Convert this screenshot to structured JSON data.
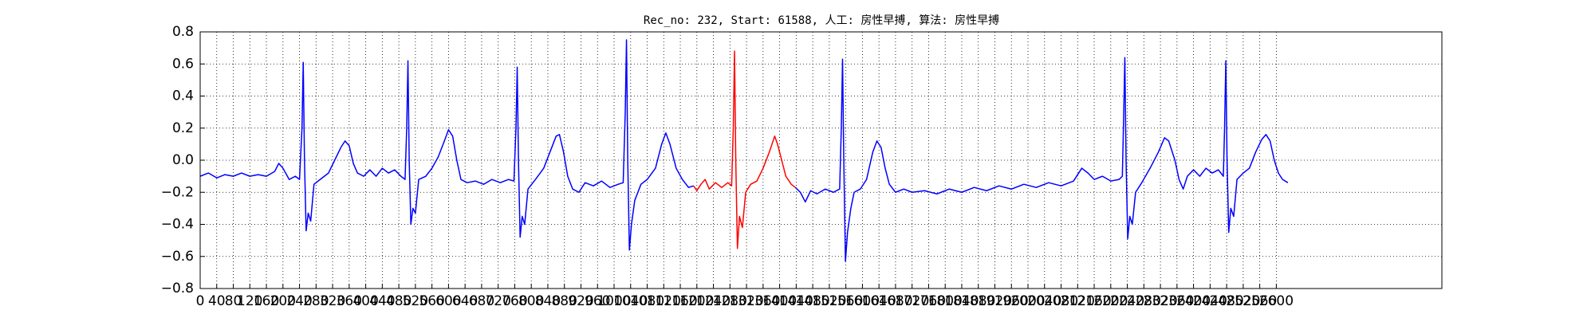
{
  "chart_data": {
    "type": "line",
    "title": "Rec_no: 232, Start: 61588, 人工: 房性早搏, 算法: 房性早搏",
    "xlim": [
      0,
      3000
    ],
    "xticks": [
      0,
      40,
      80,
      120,
      160,
      200,
      240,
      280,
      320,
      360,
      400,
      440,
      480,
      520,
      560,
      600,
      640,
      680,
      720,
      760,
      800,
      840,
      880,
      920,
      960,
      1000,
      1040,
      1080,
      1120,
      1160,
      1200,
      1240,
      1280,
      1320,
      1360,
      1400,
      1440,
      1480,
      1520,
      1560,
      1600,
      1640,
      1680,
      1720,
      1760,
      1800,
      1840,
      1880,
      1920,
      1960,
      2000,
      2040,
      2080,
      2120,
      2160,
      2200,
      2240,
      2280,
      2320,
      2360,
      2400,
      2440,
      2480,
      2520,
      2560,
      2600
    ],
    "ylim": [
      -0.8,
      0.8
    ],
    "yticks": [
      {
        "value": -0.8,
        "label": "−0.8"
      },
      {
        "value": -0.6,
        "label": "−0.6"
      },
      {
        "value": -0.4,
        "label": "−0.4"
      },
      {
        "value": -0.2,
        "label": "−0.2"
      },
      {
        "value": 0.0,
        "label": "0.0"
      },
      0.2,
      0.4,
      0.6,
      0.8
    ],
    "grid": true,
    "series": [
      {
        "color": "#0000ff",
        "x": [
          0,
          20,
          40,
          60,
          80,
          100,
          120,
          140,
          160,
          180,
          190,
          200,
          215,
          230,
          240,
          246,
          249,
          252,
          256,
          261,
          267,
          275,
          290,
          310,
          325,
          340,
          350,
          360,
          370,
          380,
          395,
          410,
          425,
          440,
          455,
          470,
          485,
          495,
          499,
          502,
          505,
          509,
          514,
          520,
          528,
          545,
          560,
          575,
          590,
          600,
          610,
          620,
          630,
          645,
          665,
          685,
          705,
          725,
          745,
          758,
          763,
          766,
          769,
          773,
          778,
          784,
          792,
          810,
          830,
          845,
          860,
          868,
          878,
          888,
          900,
          915,
          930,
          950,
          970,
          990,
          1010,
          1022,
          1027,
          1030,
          1033,
          1037,
          1042,
          1050,
          1065,
          1080,
          1100,
          1115,
          1125,
          1135,
          1150,
          1165,
          1180,
          1192,
          null,
          1438,
          1450,
          1462,
          1475,
          1490,
          1510,
          1530,
          1545,
          1549,
          1552,
          1555,
          1559,
          1564,
          1572,
          1580,
          1595,
          1610,
          1625,
          1635,
          1645,
          1655,
          1665,
          1680,
          1700,
          1720,
          1750,
          1780,
          1810,
          1840,
          1870,
          1900,
          1930,
          1960,
          1990,
          2020,
          2050,
          2080,
          2110,
          2130,
          2145,
          2160,
          2180,
          2200,
          2220,
          2228,
          2231,
          2234,
          2237,
          2241,
          2246,
          2252,
          2260,
          2275,
          2295,
          2315,
          2330,
          2340,
          2355,
          2365,
          2375,
          2385,
          2400,
          2415,
          2430,
          2445,
          2460,
          2472,
          2475,
          2478,
          2481,
          2485,
          2490,
          2497,
          2505,
          2520,
          2535,
          2550,
          2565,
          2575,
          2585,
          2595,
          2605,
          2615,
          2628
        ],
        "values": [
          -0.1,
          -0.08,
          -0.11,
          -0.09,
          -0.1,
          -0.08,
          -0.1,
          -0.09,
          -0.1,
          -0.07,
          -0.02,
          -0.05,
          -0.12,
          -0.1,
          -0.12,
          0.2,
          0.61,
          0.0,
          -0.44,
          -0.33,
          -0.38,
          -0.15,
          -0.12,
          -0.08,
          0.0,
          0.08,
          0.12,
          0.09,
          -0.02,
          -0.08,
          -0.1,
          -0.06,
          -0.1,
          -0.05,
          -0.08,
          -0.06,
          -0.1,
          -0.12,
          0.2,
          0.62,
          0.0,
          -0.4,
          -0.3,
          -0.33,
          -0.12,
          -0.1,
          -0.05,
          0.02,
          0.12,
          0.19,
          0.15,
          0.0,
          -0.12,
          -0.14,
          -0.13,
          -0.15,
          -0.12,
          -0.14,
          -0.12,
          -0.13,
          0.2,
          0.58,
          0.0,
          -0.48,
          -0.35,
          -0.4,
          -0.18,
          -0.12,
          -0.05,
          0.05,
          0.15,
          0.16,
          0.05,
          -0.1,
          -0.18,
          -0.2,
          -0.14,
          -0.16,
          -0.13,
          -0.17,
          -0.15,
          -0.14,
          0.3,
          0.75,
          0.0,
          -0.56,
          -0.4,
          -0.25,
          -0.15,
          -0.12,
          -0.05,
          0.1,
          0.17,
          0.1,
          -0.05,
          -0.12,
          -0.17,
          -0.16,
          null,
          -0.17,
          -0.2,
          -0.26,
          -0.19,
          -0.21,
          -0.18,
          -0.2,
          -0.18,
          0.2,
          0.63,
          0.0,
          -0.63,
          -0.45,
          -0.3,
          -0.2,
          -0.18,
          -0.12,
          0.05,
          0.12,
          0.08,
          -0.05,
          -0.15,
          -0.2,
          -0.18,
          -0.2,
          -0.19,
          -0.21,
          -0.18,
          -0.2,
          -0.17,
          -0.19,
          -0.16,
          -0.18,
          -0.15,
          -0.17,
          -0.14,
          -0.16,
          -0.13,
          -0.05,
          -0.08,
          -0.12,
          -0.1,
          -0.13,
          -0.12,
          -0.1,
          0.25,
          0.64,
          0.0,
          -0.49,
          -0.35,
          -0.4,
          -0.2,
          -0.14,
          -0.05,
          0.05,
          0.14,
          0.12,
          0.0,
          -0.12,
          -0.18,
          -0.1,
          -0.06,
          -0.1,
          -0.05,
          -0.08,
          -0.06,
          -0.1,
          0.2,
          0.62,
          0.0,
          -0.45,
          -0.3,
          -0.35,
          -0.12,
          -0.08,
          -0.05,
          0.05,
          0.13,
          0.16,
          0.12,
          0.0,
          -0.08,
          -0.12,
          -0.14
        ]
      },
      {
        "color": "#ff0000",
        "x": [
          1192,
          1200,
          1210,
          1220,
          1230,
          1245,
          1260,
          1275,
          1284,
          1288,
          1291,
          1294,
          1298,
          1303,
          1310,
          1318,
          1330,
          1345,
          1360,
          1375,
          1388,
          1395,
          1405,
          1415,
          1428,
          1438
        ],
        "values": [
          -0.16,
          -0.19,
          -0.15,
          -0.12,
          -0.18,
          -0.14,
          -0.17,
          -0.14,
          -0.16,
          0.2,
          0.68,
          0.0,
          -0.55,
          -0.35,
          -0.42,
          -0.2,
          -0.15,
          -0.13,
          -0.05,
          0.05,
          0.15,
          0.1,
          0.0,
          -0.1,
          -0.15,
          -0.17
        ]
      }
    ]
  }
}
